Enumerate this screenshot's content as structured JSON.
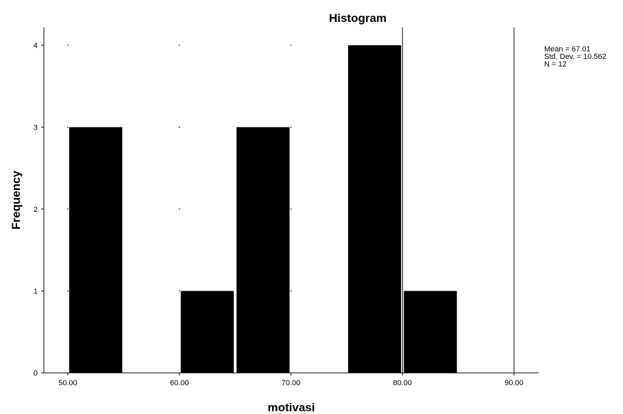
{
  "chart_data": {
    "type": "bar",
    "title": "Histogram",
    "xlabel": "motivasi",
    "ylabel": "Frequency",
    "bins": [
      {
        "x0": 50,
        "x1": 55,
        "value": 3
      },
      {
        "x0": 55,
        "x1": 60,
        "value": 0
      },
      {
        "x0": 60,
        "x1": 65,
        "value": 1
      },
      {
        "x0": 65,
        "x1": 70,
        "value": 3
      },
      {
        "x0": 70,
        "x1": 75,
        "value": 0
      },
      {
        "x0": 75,
        "x1": 80,
        "value": 4
      },
      {
        "x0": 80,
        "x1": 85,
        "value": 1
      }
    ],
    "xticks": [
      "50.00",
      "60.00",
      "70.00",
      "80.00",
      "90.00"
    ],
    "yticks": [
      "0",
      "1",
      "2",
      "3",
      "4"
    ],
    "xlim": [
      50,
      90
    ],
    "ylim": [
      0,
      4
    ],
    "bar_color": "#000000",
    "stats": {
      "mean": "Mean = 67.01",
      "std_dev": "Std. Dev. = 10.562",
      "n": "N = 12"
    }
  }
}
